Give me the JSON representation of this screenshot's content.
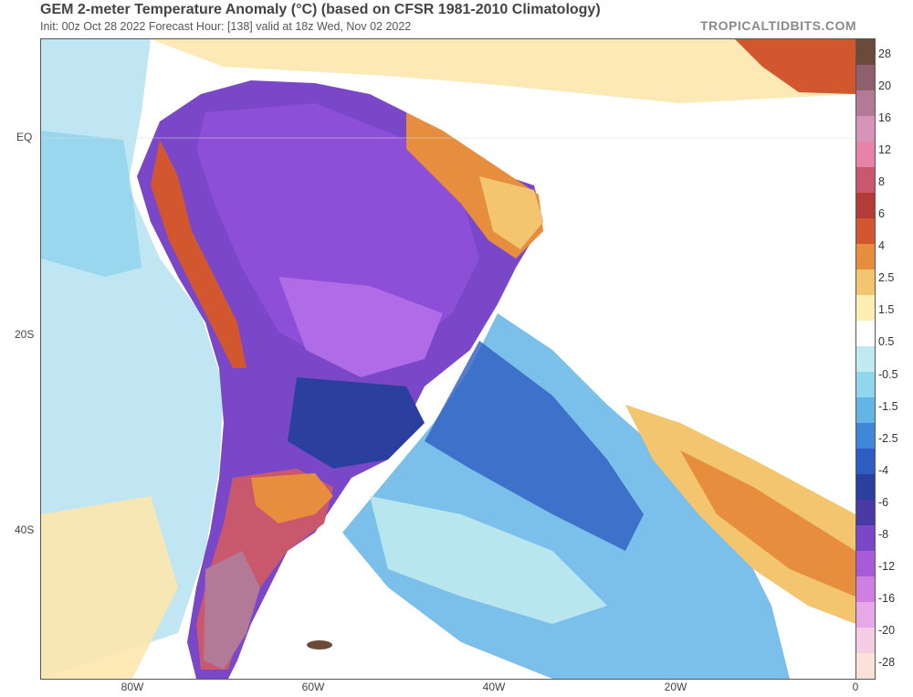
{
  "title": "GEM 2-meter Temperature Anomaly (°C) (based on CFSR 1981-2010 Climatology)",
  "subtitle": "Init: 00z Oct 28 2022   Forecast Hour: [138]   valid at 18z Wed, Nov 02 2022",
  "brand": "TROPICALTIDBITS.COM",
  "lat_labels": [
    "EQ",
    "20S",
    "40S"
  ],
  "lon_labels": [
    "80W",
    "60W",
    "40W",
    "20W",
    "0"
  ],
  "colorbar": {
    "labels": [
      "28",
      "20",
      "16",
      "12",
      "8",
      "6",
      "4",
      "2.5",
      "1.5",
      "0.5",
      "-0.5",
      "-1.5",
      "-2.5",
      "-4",
      "-6",
      "-8",
      "-12",
      "-16",
      "-20",
      "-28"
    ],
    "colors": [
      "#6b4a3a",
      "#8e5f6f",
      "#b27a97",
      "#d695b8",
      "#e783a8",
      "#c9586c",
      "#b43c36",
      "#d2572f",
      "#e68d3e",
      "#f2c56e",
      "#fdeeb4",
      "#ffffff",
      "#bfeaf0",
      "#8ed7ec",
      "#63b5e6",
      "#3f87d8",
      "#2f5cc0",
      "#2b3f9e",
      "#4a3aa6",
      "#7a47c9",
      "#a85bd8",
      "#cf7fe0",
      "#e6a8e8",
      "#f4cde4",
      "#fbe2d8"
    ]
  }
}
